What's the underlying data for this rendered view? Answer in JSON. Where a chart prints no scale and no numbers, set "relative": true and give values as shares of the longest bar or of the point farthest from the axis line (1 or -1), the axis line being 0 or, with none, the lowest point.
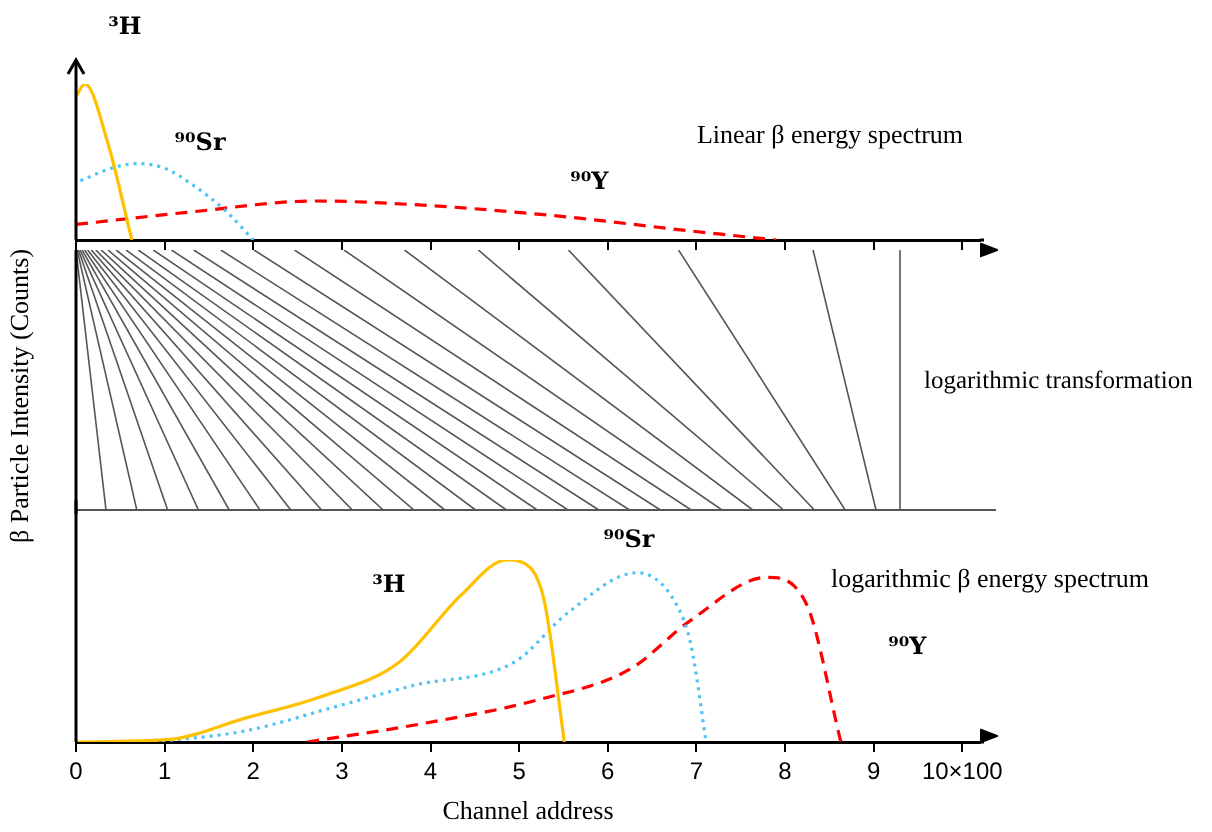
{
  "chart_data": [
    {
      "type": "line",
      "relative": true,
      "ylabel": "β Particle Intensity (Counts)",
      "annotations": [
        "Linear β energy spectrum",
        "logarithmic transformation"
      ],
      "xlim": [
        0,
        10.2
      ],
      "xticks": [
        {
          "value": 0,
          "label": null
        },
        {
          "value": 1,
          "label": null
        },
        {
          "value": 2,
          "label": null
        },
        {
          "value": 3,
          "label": null
        },
        {
          "value": 4,
          "label": null
        },
        {
          "value": 5,
          "label": null
        },
        {
          "value": 6,
          "label": null
        },
        {
          "value": 7,
          "label": null
        },
        {
          "value": 8,
          "label": null
        },
        {
          "value": 9,
          "label": null
        },
        {
          "value": 10,
          "label": null
        }
      ],
      "tick_labels": false,
      "legend": false,
      "grid": false,
      "marker": "none",
      "series": [
        {
          "name": "³H",
          "color": "#ffc000",
          "line_style": "solid",
          "x": [
            0,
            0.1,
            0.36,
            0.63
          ],
          "values": [
            0.92,
            1,
            0.62,
            0
          ]
        },
        {
          "name": "⁹⁰Sr",
          "color": "#4fc3f7",
          "line_style": "dotted",
          "x": [
            0.05,
            0.4,
            0.7,
            1.0,
            1.3,
            1.7,
            2.0
          ],
          "values": [
            0.38,
            0.46,
            0.49,
            0.46,
            0.36,
            0.18,
            0
          ]
        },
        {
          "name": "⁹⁰Y",
          "color": "#ff0000",
          "line_style": "dashed",
          "x": [
            0,
            1.3,
            2.7,
            4.0,
            5.5,
            6.9,
            7.9
          ],
          "values": [
            0.1,
            0.18,
            0.25,
            0.22,
            0.15,
            0.06,
            0
          ]
        }
      ]
    },
    {
      "type": "line",
      "relative": true,
      "xlabel": "Channel address",
      "annotations": [
        "logarithmic β energy spectrum"
      ],
      "xlim": [
        0,
        10.2
      ],
      "xticks": [
        0,
        1,
        2,
        3,
        4,
        5,
        6,
        7,
        8,
        9,
        {
          "value": 10,
          "label": "10×100"
        }
      ],
      "tick_labels": "x",
      "legend": false,
      "grid": false,
      "marker": "none",
      "series": [
        {
          "name": "³H",
          "color": "#ffc000",
          "line_style": "solid",
          "x": [
            0,
            1.05,
            1.9,
            2.77,
            3.65,
            4.35,
            4.86,
            5.12,
            5.29,
            5.51
          ],
          "values": [
            0,
            0.014,
            0.13,
            0.25,
            0.44,
            0.81,
            1,
            0.96,
            0.76,
            0
          ]
        },
        {
          "name": "⁹⁰Sr",
          "color": "#4fc3f7",
          "line_style": "dotted",
          "x": [
            0.88,
            1.9,
            2.9,
            3.8,
            4.95,
            5.55,
            6.33,
            6.77,
            6.94,
            7.11
          ],
          "values": [
            0,
            0.06,
            0.19,
            0.31,
            0.44,
            0.71,
            0.93,
            0.76,
            0.53,
            0
          ]
        },
        {
          "name": "⁹⁰Y",
          "color": "#ff0000",
          "line_style": "dashed",
          "x": [
            2.61,
            3.9,
            5.2,
            6.25,
            6.94,
            7.8,
            8.24,
            8.63
          ],
          "values": [
            0,
            0.1,
            0.23,
            0.4,
            0.67,
            0.905,
            0.76,
            0
          ]
        }
      ]
    }
  ]
}
